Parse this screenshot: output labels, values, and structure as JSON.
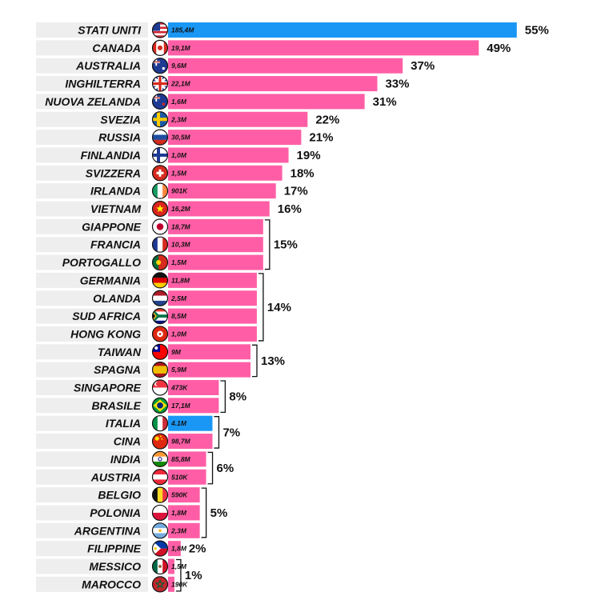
{
  "chart_data": {
    "type": "bar",
    "orientation": "horizontal",
    "unit": "%",
    "colors": {
      "default": "#FF5EA6",
      "highlight": "#1A97F5",
      "row_band": "#EEEEEE",
      "bracket": "#111111"
    },
    "rows": [
      {
        "country": "STATI UNITI",
        "flag": "usa-flag",
        "value_label": "185,4M",
        "pct": 55,
        "highlight": true
      },
      {
        "country": "CANADA",
        "flag": "canada-flag",
        "value_label": "19,1M",
        "pct": 49
      },
      {
        "country": "AUSTRALIA",
        "flag": "australia-flag",
        "value_label": "9,6M",
        "pct": 37
      },
      {
        "country": "INGHILTERRA",
        "flag": "uk-flag",
        "value_label": "22,1M",
        "pct": 33
      },
      {
        "country": "NUOVA ZELANDA",
        "flag": "new-zealand-flag",
        "value_label": "1,6M",
        "pct": 31
      },
      {
        "country": "SVEZIA",
        "flag": "sweden-flag",
        "value_label": "2,3M",
        "pct": 22
      },
      {
        "country": "RUSSIA",
        "flag": "russia-flag",
        "value_label": "30,5M",
        "pct": 21
      },
      {
        "country": "FINLANDIA",
        "flag": "finland-flag",
        "value_label": "1,0M",
        "pct": 19
      },
      {
        "country": "SVIZZERA",
        "flag": "switzerland-flag",
        "value_label": "1,5M",
        "pct": 18
      },
      {
        "country": "IRLANDA",
        "flag": "ireland-flag",
        "value_label": "901K",
        "pct": 17
      },
      {
        "country": "VIETNAM",
        "flag": "vietnam-flag",
        "value_label": "16,2M",
        "pct": 16
      },
      {
        "country": "GIAPPONE",
        "flag": "japan-flag",
        "value_label": "18,7M",
        "pct": 15
      },
      {
        "country": "FRANCIA",
        "flag": "france-flag",
        "value_label": "10,3M",
        "pct": 15
      },
      {
        "country": "PORTOGALLO",
        "flag": "portugal-flag",
        "value_label": "1,5M",
        "pct": 15
      },
      {
        "country": "GERMANIA",
        "flag": "germany-flag",
        "value_label": "11,8M",
        "pct": 14
      },
      {
        "country": "OLANDA",
        "flag": "netherlands-flag",
        "value_label": "2,5M",
        "pct": 14
      },
      {
        "country": "SUD AFRICA",
        "flag": "south-africa-flag",
        "value_label": "8,5M",
        "pct": 14
      },
      {
        "country": "HONG KONG",
        "flag": "hong-kong-flag",
        "value_label": "1,0M",
        "pct": 14
      },
      {
        "country": "TAIWAN",
        "flag": "taiwan-flag",
        "value_label": "9M",
        "pct": 13
      },
      {
        "country": "SPAGNA",
        "flag": "spain-flag",
        "value_label": "5,9M",
        "pct": 13
      },
      {
        "country": "SINGAPORE",
        "flag": "singapore-flag",
        "value_label": "473K",
        "pct": 8
      },
      {
        "country": "BRASILE",
        "flag": "brazil-flag",
        "value_label": "17,1M",
        "pct": 8
      },
      {
        "country": "ITALIA",
        "flag": "italy-flag",
        "value_label": "4.1M",
        "pct": 7,
        "highlight": true
      },
      {
        "country": "CINA",
        "flag": "china-flag",
        "value_label": "98,7M",
        "pct": 7
      },
      {
        "country": "INDIA",
        "flag": "india-flag",
        "value_label": "85,8M",
        "pct": 6
      },
      {
        "country": "AUSTRIA",
        "flag": "austria-flag",
        "value_label": "510K",
        "pct": 6
      },
      {
        "country": "BELGIO",
        "flag": "belgium-flag",
        "value_label": "590K",
        "pct": 5
      },
      {
        "country": "POLONIA",
        "flag": "poland-flag",
        "value_label": "1,8M",
        "pct": 5
      },
      {
        "country": "ARGENTINA",
        "flag": "argentina-flag",
        "value_label": "2,3M",
        "pct": 5
      },
      {
        "country": "FILIPPINE",
        "flag": "philippines-flag",
        "value_label": "1,8M",
        "pct": 2
      },
      {
        "country": "MESSICO",
        "flag": "mexico-flag",
        "value_label": "1,5M",
        "pct": 1
      },
      {
        "country": "MAROCCO",
        "flag": "morocco-flag",
        "value_label": "190K",
        "pct": 1
      }
    ],
    "groups": [
      {
        "label": "55%",
        "first": 0,
        "last": 0
      },
      {
        "label": "49%",
        "first": 1,
        "last": 1
      },
      {
        "label": "37%",
        "first": 2,
        "last": 2
      },
      {
        "label": "33%",
        "first": 3,
        "last": 3
      },
      {
        "label": "31%",
        "first": 4,
        "last": 4
      },
      {
        "label": "22%",
        "first": 5,
        "last": 5
      },
      {
        "label": "21%",
        "first": 6,
        "last": 6
      },
      {
        "label": "19%",
        "first": 7,
        "last": 7
      },
      {
        "label": "18%",
        "first": 8,
        "last": 8
      },
      {
        "label": "17%",
        "first": 9,
        "last": 9
      },
      {
        "label": "16%",
        "first": 10,
        "last": 10
      },
      {
        "label": "15%",
        "first": 11,
        "last": 13
      },
      {
        "label": "14%",
        "first": 14,
        "last": 17
      },
      {
        "label": "13%",
        "first": 18,
        "last": 19
      },
      {
        "label": "8%",
        "first": 20,
        "last": 21
      },
      {
        "label": "7%",
        "first": 22,
        "last": 23
      },
      {
        "label": "6%",
        "first": 24,
        "last": 25
      },
      {
        "label": "5%",
        "first": 26,
        "last": 28
      },
      {
        "label": "2%",
        "first": 29,
        "last": 29
      },
      {
        "label": "1%",
        "first": 30,
        "last": 31
      }
    ]
  }
}
